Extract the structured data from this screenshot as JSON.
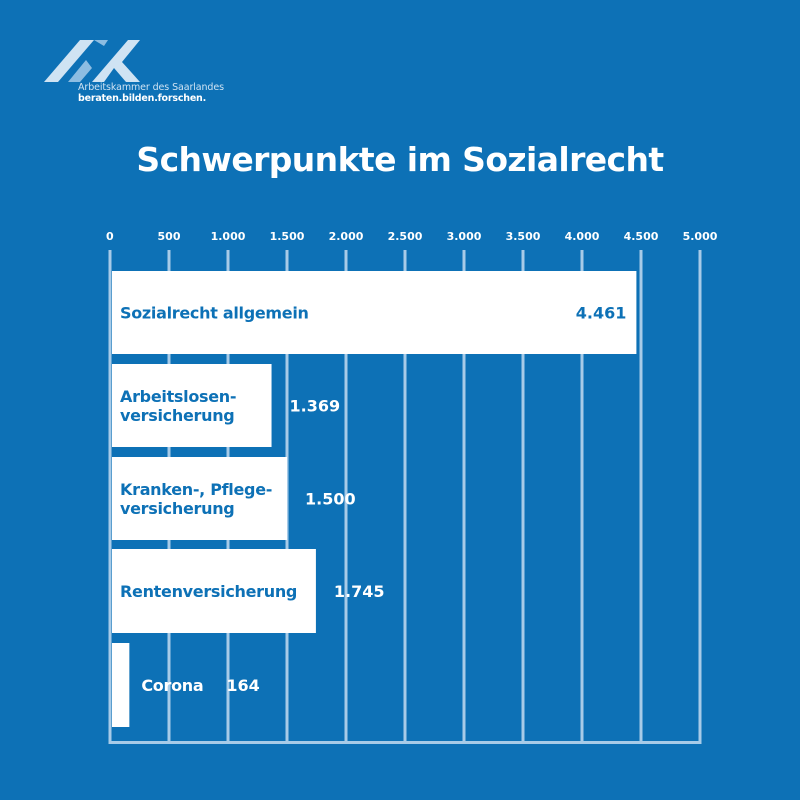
{
  "brand": {
    "org": "Arbeitskammer des Saarlandes",
    "slogan": "beraten.bilden.forschen."
  },
  "colors": {
    "background": "#0d71b6",
    "bar": "#ffffff",
    "label_on_bar": "#0d71b6",
    "label_off_bar": "#ffffff",
    "axis": "#a7cbe8"
  },
  "chart_data": {
    "type": "bar",
    "orientation": "horizontal",
    "title": "Schwerpunkte im Sozialrecht",
    "xlim": [
      0,
      5000
    ],
    "ticks": [
      0,
      500,
      1000,
      1500,
      2000,
      2500,
      3000,
      3500,
      4000,
      4500,
      5000
    ],
    "tick_labels": [
      "0",
      "500",
      "1.000",
      "1.500",
      "2.000",
      "2.500",
      "3.000",
      "3.500",
      "4.000",
      "4.500",
      "5.000"
    ],
    "grid": true,
    "categories": [
      "Sozialrecht allgemein",
      "Arbeitslosen-\nversicherung",
      "Kranken-, Pflege-\nversicherung",
      "Rentenversicherung",
      "Corona"
    ],
    "values": [
      4461,
      1369,
      1500,
      1745,
      164
    ],
    "value_labels": [
      "4.461",
      "1.369",
      "1.500",
      "1.745",
      "164"
    ]
  }
}
